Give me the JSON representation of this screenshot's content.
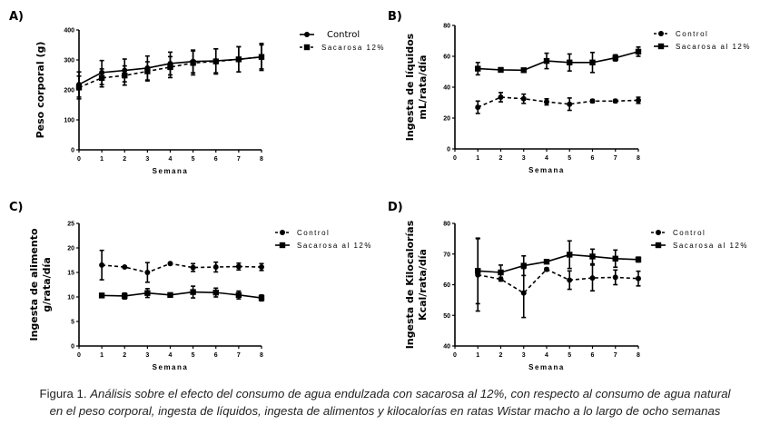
{
  "caption": {
    "prefix": "Figura 1.",
    "line1": "Análisis sobre el efecto del consumo de agua endulzada con sacarosa al 12%, con respecto al consumo de agua natural",
    "line2": "en el peso corporal, ingesta de líquidos, ingesta de alimentos y kilocalorías en ratas Wistar macho a lo largo de ocho semanas"
  },
  "chart_data": [
    {
      "panel": "A)",
      "type": "line",
      "title": "",
      "xlabel": "Semana",
      "ylabel": "Peso corporal (g)",
      "x": [
        0,
        1,
        2,
        3,
        4,
        5,
        6,
        7,
        8
      ],
      "xticks": [
        "0",
        "1",
        "2",
        "3",
        "4",
        "5",
        "6",
        "7",
        "8"
      ],
      "xlim": [
        0,
        8
      ],
      "ylim": [
        0,
        400
      ],
      "yticks": [
        0,
        100,
        200,
        300,
        400
      ],
      "grid": false,
      "legend_position": "top-right-outside",
      "series": [
        {
          "name": "Control",
          "line": "solid",
          "marker": "circle",
          "values": [
            218,
            258,
            265,
            273,
            288,
            295,
            297,
            302,
            310
          ],
          "errors": [
            42,
            40,
            38,
            40,
            38,
            38,
            40,
            42,
            45
          ]
        },
        {
          "name": "Sacarosa 12%",
          "line": "dashed",
          "marker": "square",
          "values": [
            208,
            240,
            248,
            262,
            276,
            290,
            295,
            302,
            310
          ],
          "errors": [
            38,
            30,
            32,
            32,
            35,
            40,
            42,
            42,
            40
          ]
        }
      ]
    },
    {
      "panel": "B)",
      "type": "line",
      "title": "",
      "xlabel": "Semana",
      "ylabel": [
        "Ingesta de líquidos",
        "mL/rata/día"
      ],
      "x": [
        1,
        2,
        3,
        4,
        5,
        6,
        7,
        8
      ],
      "xticks": [
        "0",
        "1",
        "2",
        "3",
        "4",
        "5",
        "6",
        "7",
        "8"
      ],
      "xlim": [
        0,
        8
      ],
      "ylim": [
        0,
        80
      ],
      "yticks": [
        0,
        20,
        40,
        60,
        80
      ],
      "grid": false,
      "legend_position": "top-right-outside",
      "series": [
        {
          "name": "Control",
          "line": "dashed",
          "marker": "circle",
          "values": [
            27,
            33.5,
            32.5,
            30.5,
            29,
            31,
            31,
            31.5
          ],
          "errors": [
            4,
            3,
            3,
            2,
            4,
            1,
            1,
            2
          ]
        },
        {
          "name": "Sacarosa al 12%",
          "line": "solid",
          "marker": "square",
          "values": [
            52,
            51.2,
            51,
            57,
            56,
            56,
            59,
            63
          ],
          "errors": [
            4,
            1,
            1,
            5,
            5.5,
            6.5,
            2,
            3
          ]
        }
      ]
    },
    {
      "panel": "C)",
      "type": "line",
      "title": "",
      "xlabel": "Semana",
      "ylabel": [
        "Ingesta de alimento",
        "g/rata/día"
      ],
      "x": [
        1,
        2,
        3,
        4,
        5,
        6,
        7,
        8
      ],
      "xticks": [
        "0",
        "1",
        "2",
        "3",
        "4",
        "5",
        "6",
        "7",
        "8"
      ],
      "xlim": [
        0,
        8
      ],
      "ylim": [
        0,
        25
      ],
      "yticks": [
        0,
        5,
        10,
        15,
        20,
        25
      ],
      "grid": false,
      "legend_position": "top-right-outside",
      "series": [
        {
          "name": "Control",
          "line": "dashed",
          "marker": "circle",
          "values": [
            16.5,
            16.1,
            15.0,
            16.8,
            16.0,
            16.1,
            16.2,
            16.1
          ],
          "errors": [
            3.0,
            0.2,
            2.0,
            0.2,
            0.8,
            1.0,
            0.7,
            0.7
          ]
        },
        {
          "name": "Sacarosa al 12%",
          "line": "solid",
          "marker": "square",
          "values": [
            10.3,
            10.2,
            10.8,
            10.4,
            11.0,
            10.9,
            10.4,
            9.8
          ],
          "errors": [
            0.4,
            0.6,
            0.9,
            0.3,
            1.2,
            0.9,
            0.8,
            0.6
          ]
        }
      ]
    },
    {
      "panel": "D)",
      "type": "line",
      "title": "",
      "xlabel": "Semana",
      "ylabel": [
        "Ingesta de Kilocalorías",
        "Kcal/rata/día"
      ],
      "x": [
        1,
        2,
        3,
        4,
        5,
        6,
        7,
        8
      ],
      "xticks": [
        "0",
        "1",
        "2",
        "3",
        "4",
        "5",
        "6",
        "7",
        "8"
      ],
      "xlim": [
        0,
        8
      ],
      "ylim": [
        40,
        80
      ],
      "yticks": [
        40,
        50,
        60,
        70,
        80
      ],
      "grid": false,
      "legend_position": "top-right-outside",
      "series": [
        {
          "name": "Control",
          "line": "dashed",
          "marker": "circle",
          "values": [
            63.2,
            61.8,
            57.3,
            65.0,
            61.5,
            62.2,
            62.4,
            62.0
          ],
          "errors": [
            11.8,
            0.6,
            8.0,
            0.5,
            3.0,
            4.2,
            2.4,
            2.4
          ]
        },
        {
          "name": "Sacarosa al 12%",
          "line": "solid",
          "marker": "square",
          "values": [
            64.5,
            64.0,
            66.2,
            67.5,
            69.8,
            69.2,
            68.5,
            68.2
          ],
          "errors": [
            10.7,
            2.4,
            3.2,
            0.4,
            4.5,
            2.4,
            2.8,
            0.8
          ]
        }
      ]
    }
  ]
}
